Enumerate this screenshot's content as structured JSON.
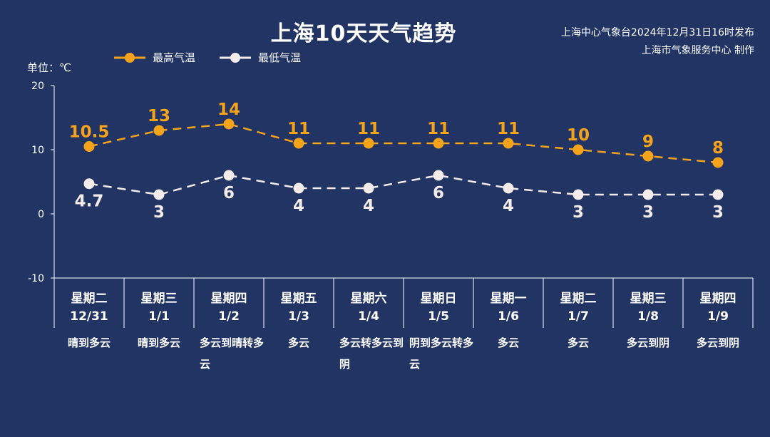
{
  "header": {
    "title": "上海10天天气趋势",
    "publisher_line1": "上海中心气象台2024年12月31日16时发布",
    "publisher_line2": "上海市气象服务中心 制作",
    "unit": "单位：℃"
  },
  "colors": {
    "background": "#223464",
    "high": "#f5a31a",
    "low": "#f4ecea",
    "axis": "#ffffff"
  },
  "chart_data": {
    "type": "line",
    "ylim": [
      -10,
      20
    ],
    "yticks": [
      20,
      10,
      0,
      -10
    ],
    "series": [
      {
        "name": "最高气温",
        "values": [
          10.5,
          13,
          14,
          11,
          11,
          11,
          11,
          10,
          9,
          8
        ],
        "labels": [
          "10.5",
          "13",
          "14",
          "11",
          "11",
          "11",
          "11",
          "10",
          "9",
          "8"
        ]
      },
      {
        "name": "最低气温",
        "values": [
          4.7,
          3,
          6,
          4,
          4,
          6,
          4,
          3,
          3,
          3
        ],
        "labels": [
          "4.7",
          "3",
          "6",
          "4",
          "4",
          "6",
          "4",
          "3",
          "3",
          "3"
        ]
      }
    ]
  },
  "days": [
    {
      "weekday": "星期二",
      "date": "12/31",
      "weather": "晴到多云"
    },
    {
      "weekday": "星期三",
      "date": "1/1",
      "weather": "晴到多云"
    },
    {
      "weekday": "星期四",
      "date": "1/2",
      "weather": "多云到晴转多云"
    },
    {
      "weekday": "星期五",
      "date": "1/3",
      "weather": "多云"
    },
    {
      "weekday": "星期六",
      "date": "1/4",
      "weather": "多云转多云到阴"
    },
    {
      "weekday": "星期日",
      "date": "1/5",
      "weather": "阴到多云转多云"
    },
    {
      "weekday": "星期一",
      "date": "1/6",
      "weather": "多云"
    },
    {
      "weekday": "星期二",
      "date": "1/7",
      "weather": "多云"
    },
    {
      "weekday": "星期三",
      "date": "1/8",
      "weather": "多云到阴"
    },
    {
      "weekday": "星期四",
      "date": "1/9",
      "weather": "多云到阴"
    }
  ]
}
